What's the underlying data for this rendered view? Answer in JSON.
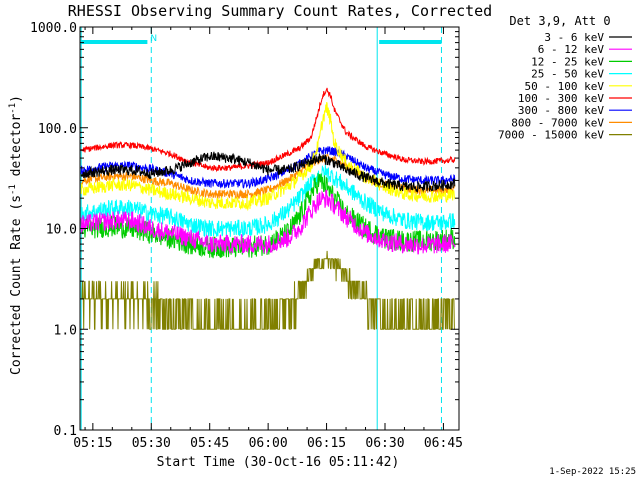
{
  "chart_data": {
    "type": "line",
    "title": "RHESSI Observing Summary Count Rates, Corrected",
    "xlabel": "Start Time (30-Oct-16 05:11:42)",
    "ylabel": "Corrected Count Rate (s",
    "ylabel_sup1": "-1",
    "ylabel_mid": " detector",
    "ylabel_sup2": "-1",
    "ylabel_end": ")",
    "yscale": "log",
    "xlim": [
      11.7,
      109
    ],
    "ylim": [
      0.1,
      1000
    ],
    "xunit": "minutes after 05:00",
    "x_ticks": [
      {
        "v": 15,
        "label": "05:15"
      },
      {
        "v": 30,
        "label": "05:30"
      },
      {
        "v": 45,
        "label": "05:45"
      },
      {
        "v": 60,
        "label": "06:00"
      },
      {
        "v": 75,
        "label": "06:15"
      },
      {
        "v": 90,
        "label": "06:30"
      },
      {
        "v": 105,
        "label": "06:45"
      }
    ],
    "y_ticks": [
      {
        "v": 0.1,
        "label": "0.1"
      },
      {
        "v": 1,
        "label": "1.0"
      },
      {
        "v": 10,
        "label": "10.0"
      },
      {
        "v": 100,
        "label": "100.0"
      },
      {
        "v": 1000,
        "label": "1000.0"
      }
    ],
    "legend_title": "Det 3,9, Att 0",
    "legend_position": "right",
    "series": [
      {
        "name": "3 - 6 keV",
        "color": "#000000",
        "x": [
          12,
          20,
          25,
          30,
          35,
          40,
          45,
          50,
          55,
          60,
          65,
          70,
          73,
          75,
          77,
          80,
          85,
          90,
          95,
          100,
          105,
          108
        ],
        "values": [
          35,
          38,
          38,
          35,
          38,
          45,
          52,
          50,
          45,
          38,
          38,
          45,
          50,
          48,
          45,
          38,
          32,
          28,
          26,
          26,
          27,
          28
        ]
      },
      {
        "name": "6 - 12 keV",
        "color": "#ff00ff",
        "x": [
          12,
          20,
          25,
          30,
          35,
          40,
          45,
          50,
          55,
          60,
          65,
          68,
          71,
          73,
          75,
          77,
          80,
          85,
          90,
          95,
          100,
          105,
          108
        ],
        "values": [
          11,
          12,
          12,
          10,
          9,
          8,
          7,
          7,
          7,
          7,
          8,
          10,
          15,
          19,
          20,
          17,
          13,
          9,
          7.5,
          7,
          6.8,
          7,
          7.2
        ]
      },
      {
        "name": "12 - 25 keV",
        "color": "#00cc00",
        "x": [
          12,
          20,
          25,
          30,
          35,
          40,
          45,
          50,
          55,
          60,
          65,
          68,
          71,
          73,
          75,
          77,
          80,
          85,
          90,
          95,
          100,
          105,
          108
        ],
        "values": [
          10,
          10.5,
          10,
          9,
          8,
          7,
          6.5,
          6.5,
          6.5,
          7,
          9,
          13,
          22,
          30,
          26,
          20,
          14,
          10,
          8,
          7.5,
          7.5,
          7.8,
          8
        ]
      },
      {
        "name": "25 - 50 keV",
        "color": "#00ffff",
        "x": [
          12,
          20,
          25,
          30,
          35,
          40,
          45,
          50,
          55,
          60,
          65,
          68,
          71,
          73,
          75,
          77,
          80,
          85,
          90,
          95,
          100,
          105,
          108
        ],
        "values": [
          14,
          16,
          16,
          14,
          13,
          11,
          10,
          10,
          10,
          11,
          15,
          20,
          28,
          34,
          36,
          32,
          26,
          18,
          14,
          12,
          11.5,
          11.5,
          12
        ]
      },
      {
        "name": "50 - 100 keV",
        "color": "#ffff00",
        "x": [
          12,
          20,
          25,
          30,
          35,
          40,
          45,
          50,
          55,
          60,
          65,
          68,
          71,
          73,
          74,
          75,
          76,
          77,
          80,
          85,
          90,
          95,
          100,
          105,
          108
        ],
        "values": [
          24,
          27,
          27,
          24,
          22,
          20,
          18,
          18,
          18,
          20,
          26,
          32,
          42,
          70,
          120,
          160,
          120,
          70,
          45,
          32,
          26,
          22,
          21,
          21,
          22
        ]
      },
      {
        "name": "100 - 300 keV",
        "color": "#ff0000",
        "x": [
          12,
          20,
          25,
          30,
          35,
          40,
          45,
          50,
          55,
          60,
          65,
          68,
          71,
          73,
          74,
          75,
          76,
          77,
          80,
          85,
          90,
          95,
          100,
          105,
          108
        ],
        "values": [
          60,
          67,
          67,
          62,
          55,
          45,
          40,
          40,
          42,
          45,
          55,
          62,
          80,
          150,
          210,
          240,
          210,
          150,
          90,
          65,
          55,
          48,
          46,
          47,
          48
        ]
      },
      {
        "name": "300 - 800 keV",
        "color": "#0000ff",
        "x": [
          12,
          20,
          25,
          30,
          35,
          40,
          45,
          50,
          55,
          60,
          65,
          68,
          71,
          73,
          75,
          77,
          80,
          85,
          90,
          95,
          100,
          105,
          108
        ],
        "values": [
          38,
          42,
          42,
          39,
          35,
          30,
          28,
          28,
          28,
          31,
          38,
          44,
          52,
          58,
          60,
          58,
          52,
          40,
          34,
          31,
          30,
          30,
          31
        ]
      },
      {
        "name": "800 - 7000 keV",
        "color": "#ff8c00",
        "x": [
          12,
          20,
          25,
          30,
          35,
          40,
          45,
          50,
          55,
          60,
          65,
          68,
          71,
          73,
          75,
          77,
          80,
          85,
          90,
          95,
          100,
          105,
          108
        ],
        "values": [
          30,
          33,
          33,
          30,
          28,
          24,
          22,
          22,
          22,
          24,
          30,
          36,
          44,
          48,
          50,
          48,
          42,
          32,
          27,
          25,
          24,
          24,
          25
        ]
      },
      {
        "name": "7000 - 15000 keV",
        "color": "#808000",
        "x": [
          12,
          20,
          25,
          30,
          35,
          40,
          45,
          50,
          55,
          60,
          65,
          68,
          71,
          73,
          75,
          77,
          80,
          85,
          90,
          95,
          100,
          105,
          108
        ],
        "values": [
          2,
          2,
          2,
          2,
          1.4,
          1.2,
          1.1,
          1.1,
          1.1,
          1.3,
          1.7,
          2.4,
          3.5,
          4.5,
          5,
          4.5,
          3.2,
          2,
          1.4,
          1.3,
          1.3,
          1.4,
          1.5
        ]
      }
    ],
    "markers": {
      "solid_verticals": [
        12,
        88
      ],
      "dashed_verticals": [
        30,
        104.5
      ],
      "bars": [
        {
          "from": 12,
          "to": 29
        },
        {
          "from": 88.5,
          "to": 104.5
        }
      ],
      "bar_label": "N"
    },
    "timestamp": "1-Sep-2022 15:25"
  }
}
